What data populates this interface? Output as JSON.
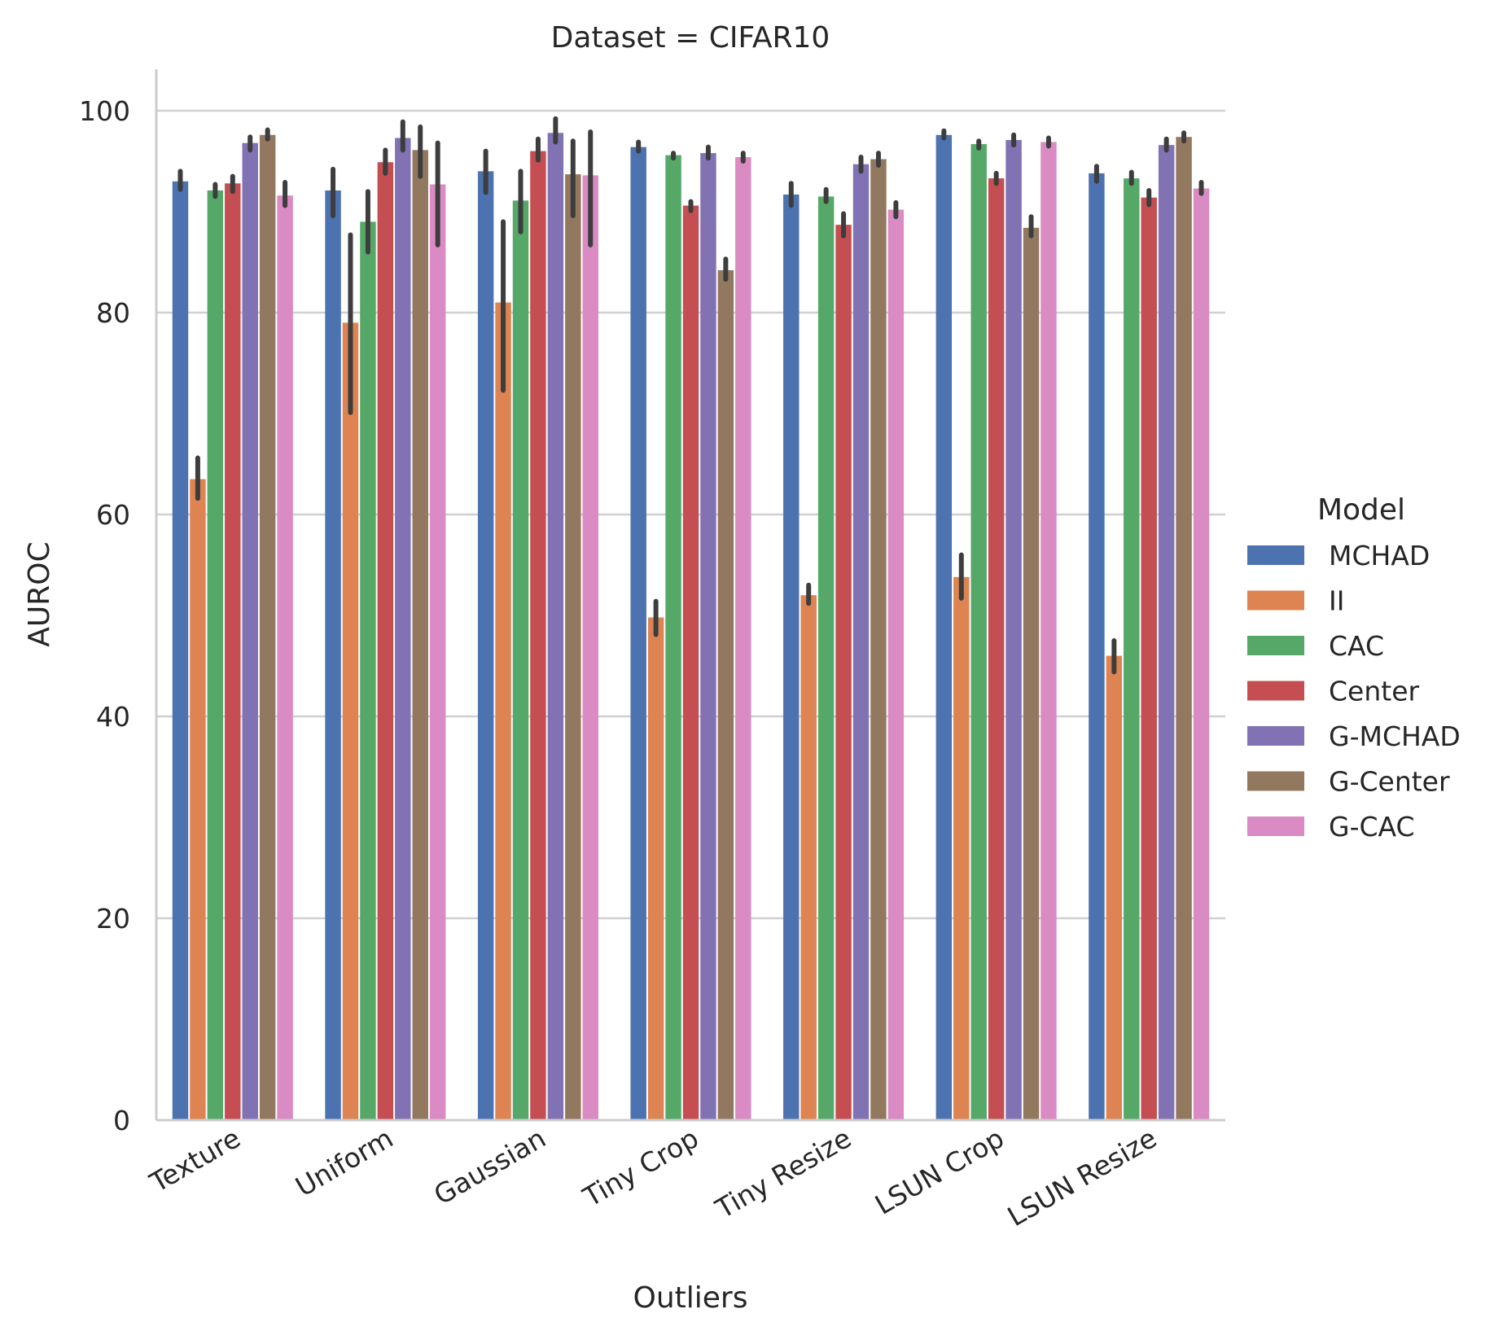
{
  "chart_data": {
    "type": "bar",
    "title": "Dataset = CIFAR10",
    "xlabel": "Outliers",
    "ylabel": "AUROC",
    "ylim": [
      0,
      104
    ],
    "yticks": [
      0,
      20,
      40,
      60,
      80,
      100
    ],
    "grid": "horizontal",
    "legend_title": "Model",
    "legend_position": "right",
    "categories": [
      "Texture",
      "Uniform",
      "Gaussian",
      "Tiny Crop",
      "Tiny Resize",
      "LSUN Crop",
      "LSUN Resize"
    ],
    "series": [
      {
        "name": "MCHAD",
        "color": "#4c72b0",
        "values": [
          93.0,
          92.1,
          94.0,
          96.4,
          91.7,
          97.6,
          93.8
        ],
        "ci": [
          [
            92.2,
            94.0
          ],
          [
            89.6,
            94.2
          ],
          [
            91.9,
            96.0
          ],
          [
            96.0,
            96.9
          ],
          [
            90.6,
            92.8
          ],
          [
            97.3,
            98.0
          ],
          [
            93.0,
            94.5
          ]
        ]
      },
      {
        "name": "II",
        "color": "#dd8452",
        "values": [
          63.5,
          79.0,
          81.0,
          49.8,
          52.0,
          53.8,
          46.0
        ],
        "ci": [
          [
            61.6,
            65.6
          ],
          [
            70.1,
            87.7
          ],
          [
            72.3,
            89.0
          ],
          [
            48.1,
            51.4
          ],
          [
            51.2,
            53.0
          ],
          [
            51.7,
            56.0
          ],
          [
            44.4,
            47.5
          ]
        ]
      },
      {
        "name": "CAC",
        "color": "#55a868",
        "values": [
          92.1,
          89.0,
          91.1,
          95.6,
          91.5,
          96.7,
          93.3
        ],
        "ci": [
          [
            91.5,
            92.7
          ],
          [
            86.0,
            92.0
          ],
          [
            88.0,
            94.0
          ],
          [
            95.3,
            95.8
          ],
          [
            91.0,
            92.2
          ],
          [
            96.3,
            97.0
          ],
          [
            92.8,
            93.9
          ]
        ]
      },
      {
        "name": "Center",
        "color": "#c44e52",
        "values": [
          92.8,
          94.9,
          96.0,
          90.6,
          88.7,
          93.3,
          91.4
        ],
        "ci": [
          [
            92.0,
            93.5
          ],
          [
            93.8,
            96.1
          ],
          [
            95.1,
            97.2
          ],
          [
            90.1,
            91.0
          ],
          [
            87.6,
            89.8
          ],
          [
            92.8,
            93.8
          ],
          [
            90.7,
            92.1
          ]
        ]
      },
      {
        "name": "G-MCHAD",
        "color": "#8172b3",
        "values": [
          96.8,
          97.3,
          97.8,
          95.8,
          94.7,
          97.1,
          96.6
        ],
        "ci": [
          [
            96.1,
            97.4
          ],
          [
            96.1,
            98.9
          ],
          [
            96.9,
            99.2
          ],
          [
            95.3,
            96.4
          ],
          [
            94.0,
            95.4
          ],
          [
            96.6,
            97.6
          ],
          [
            96.1,
            97.2
          ]
        ]
      },
      {
        "name": "G-Center",
        "color": "#937860",
        "values": [
          97.6,
          96.1,
          93.7,
          84.2,
          95.2,
          88.4,
          97.4
        ],
        "ci": [
          [
            97.2,
            98.1
          ],
          [
            93.5,
            98.4
          ],
          [
            89.6,
            97.0
          ],
          [
            83.3,
            85.3
          ],
          [
            94.6,
            95.8
          ],
          [
            87.6,
            89.5
          ],
          [
            97.0,
            97.8
          ]
        ]
      },
      {
        "name": "G-CAC",
        "color": "#da8bc3",
        "values": [
          91.6,
          92.7,
          93.6,
          95.4,
          90.2,
          96.9,
          92.3
        ],
        "ci": [
          [
            90.6,
            92.9
          ],
          [
            86.7,
            96.8
          ],
          [
            86.7,
            97.9
          ],
          [
            95.0,
            95.8
          ],
          [
            89.5,
            90.9
          ],
          [
            96.5,
            97.3
          ],
          [
            91.8,
            92.9
          ]
        ]
      }
    ]
  }
}
